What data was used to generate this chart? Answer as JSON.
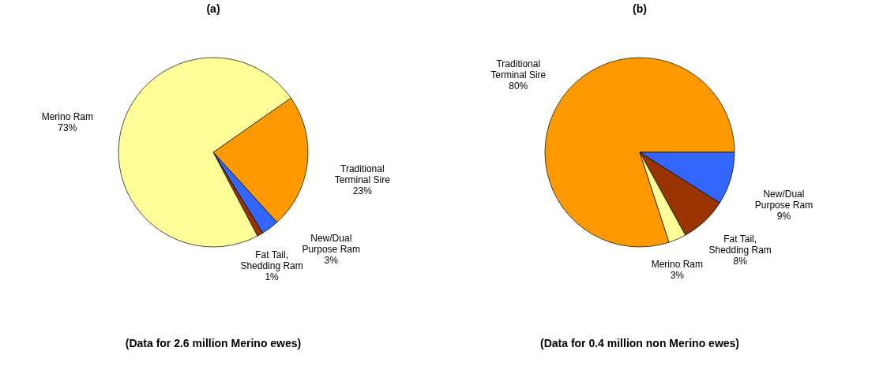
{
  "chart_data": [
    {
      "type": "pie",
      "title": "(a)",
      "categories": [
        "Traditional Terminal Sire",
        "New/Dual Purpose Ram",
        "Fat Tail, Shedding Ram",
        "Merino Ram"
      ],
      "values": [
        23,
        3,
        1,
        73
      ],
      "colors": [
        "#ff9900",
        "#3366ff",
        "#993300",
        "#ffff99"
      ],
      "value_labels": [
        "23%",
        "3%",
        "1%",
        "73%"
      ],
      "legend": false,
      "annotations": [
        "(Data for 2.6 million Merino ewes)"
      ]
    },
    {
      "type": "pie",
      "title": "(b)",
      "categories": [
        "Traditional Terminal Sire",
        "New/Dual Purpose Ram",
        "Fat Tail, Shedding Ram",
        "Merino Ram"
      ],
      "values": [
        80,
        9,
        8,
        3
      ],
      "colors": [
        "#ff9900",
        "#3366ff",
        "#993300",
        "#ffff99"
      ],
      "value_labels": [
        "80%",
        "9%",
        "8%",
        "3%"
      ],
      "legend": false,
      "annotations": [
        "(Data for 0.4 million non Merino ewes)"
      ]
    }
  ]
}
